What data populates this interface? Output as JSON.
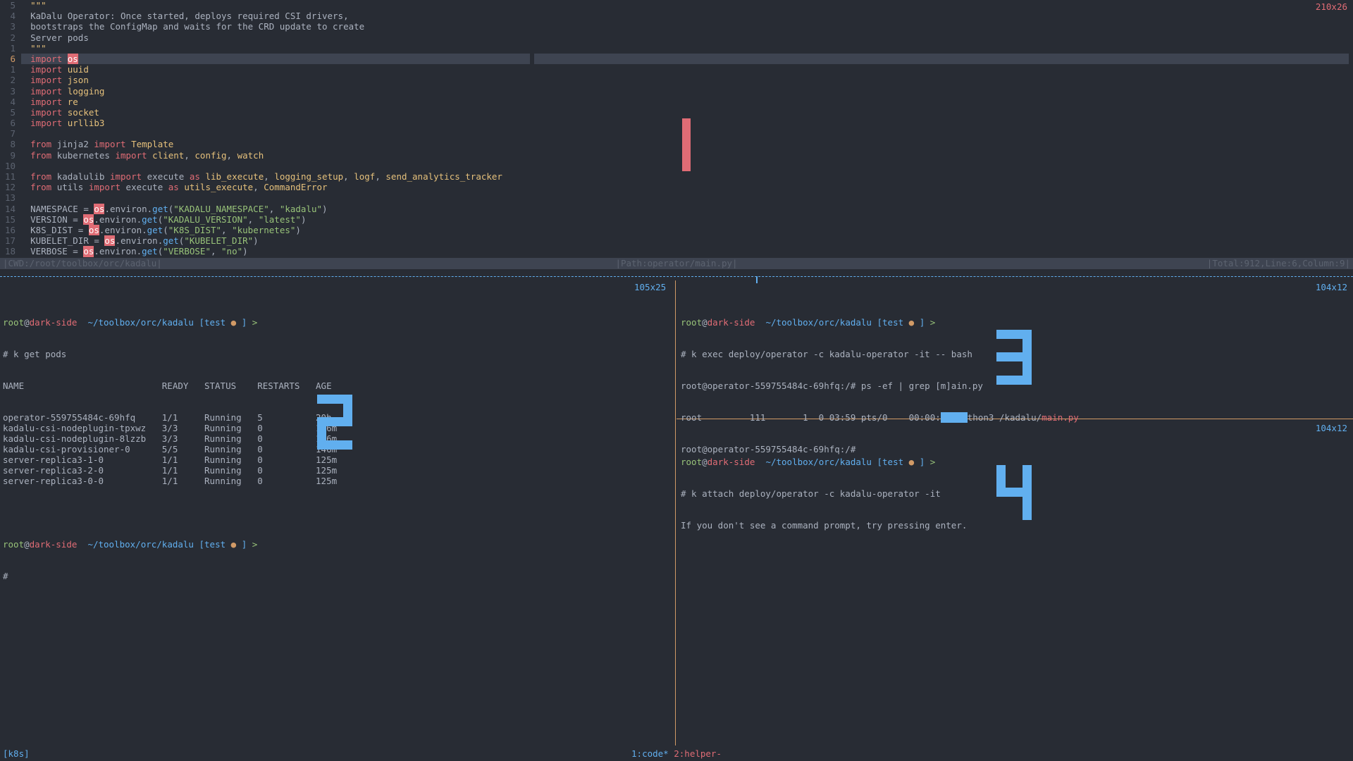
{
  "colors": {
    "bg": "#282c34",
    "fg": "#abb2bf",
    "gutter": "#5c6370",
    "red": "#e06c75",
    "yellow": "#e5c07b",
    "orange": "#d19a66",
    "green": "#98c379",
    "blue": "#61afef",
    "selection": "#3e4451"
  },
  "editor": {
    "top_size": "210x26",
    "current_line_rel": "6",
    "lines": [
      {
        "rel": "5",
        "tokens": [
          {
            "t": "\"\"\"",
            "c": "mod"
          }
        ]
      },
      {
        "rel": "4",
        "tokens": [
          {
            "t": "KaDalu Operator: Once started, deploys required CSI drivers,",
            "c": "op"
          }
        ]
      },
      {
        "rel": "3",
        "tokens": [
          {
            "t": "bootstraps the ConfigMap and waits for the CRD update to create",
            "c": "op"
          }
        ]
      },
      {
        "rel": "2",
        "tokens": [
          {
            "t": "Server pods",
            "c": "op"
          }
        ]
      },
      {
        "rel": "1",
        "tokens": [
          {
            "t": "\"\"\"",
            "c": "mod"
          }
        ]
      },
      {
        "rel": "6",
        "current": true,
        "tokens": [
          {
            "t": "import",
            "c": "kw"
          },
          {
            "t": " ",
            "c": "op"
          },
          {
            "t": "os",
            "c": "hl-os"
          }
        ]
      },
      {
        "rel": "1",
        "tokens": [
          {
            "t": "import",
            "c": "kw"
          },
          {
            "t": " ",
            "c": "op"
          },
          {
            "t": "uuid",
            "c": "mod"
          }
        ]
      },
      {
        "rel": "2",
        "tokens": [
          {
            "t": "import",
            "c": "kw"
          },
          {
            "t": " ",
            "c": "op"
          },
          {
            "t": "json",
            "c": "mod"
          }
        ]
      },
      {
        "rel": "3",
        "tokens": [
          {
            "t": "import",
            "c": "kw"
          },
          {
            "t": " ",
            "c": "op"
          },
          {
            "t": "logging",
            "c": "mod"
          }
        ]
      },
      {
        "rel": "4",
        "tokens": [
          {
            "t": "import",
            "c": "kw"
          },
          {
            "t": " ",
            "c": "op"
          },
          {
            "t": "re",
            "c": "mod"
          }
        ]
      },
      {
        "rel": "5",
        "tokens": [
          {
            "t": "import",
            "c": "kw"
          },
          {
            "t": " ",
            "c": "op"
          },
          {
            "t": "socket",
            "c": "mod"
          }
        ]
      },
      {
        "rel": "6",
        "tokens": [
          {
            "t": "import",
            "c": "kw"
          },
          {
            "t": " ",
            "c": "op"
          },
          {
            "t": "urllib3",
            "c": "mod"
          }
        ]
      },
      {
        "rel": "7",
        "tokens": []
      },
      {
        "rel": "8",
        "tokens": [
          {
            "t": "from",
            "c": "kw"
          },
          {
            "t": " jinja2 ",
            "c": "op"
          },
          {
            "t": "import",
            "c": "kw"
          },
          {
            "t": " ",
            "c": "op"
          },
          {
            "t": "Template",
            "c": "mod"
          }
        ]
      },
      {
        "rel": "9",
        "tokens": [
          {
            "t": "from",
            "c": "kw"
          },
          {
            "t": " kubernetes ",
            "c": "op"
          },
          {
            "t": "import",
            "c": "kw"
          },
          {
            "t": " ",
            "c": "op"
          },
          {
            "t": "client",
            "c": "mod"
          },
          {
            "t": ", ",
            "c": "op"
          },
          {
            "t": "config",
            "c": "mod"
          },
          {
            "t": ", ",
            "c": "op"
          },
          {
            "t": "watch",
            "c": "mod"
          }
        ]
      },
      {
        "rel": "10",
        "tokens": []
      },
      {
        "rel": "11",
        "tokens": [
          {
            "t": "from",
            "c": "kw"
          },
          {
            "t": " kadalulib ",
            "c": "op"
          },
          {
            "t": "import",
            "c": "kw"
          },
          {
            "t": " execute ",
            "c": "op"
          },
          {
            "t": "as",
            "c": "kw"
          },
          {
            "t": " ",
            "c": "op"
          },
          {
            "t": "lib_execute",
            "c": "mod"
          },
          {
            "t": ", ",
            "c": "op"
          },
          {
            "t": "logging_setup",
            "c": "mod"
          },
          {
            "t": ", ",
            "c": "op"
          },
          {
            "t": "logf",
            "c": "mod"
          },
          {
            "t": ", ",
            "c": "op"
          },
          {
            "t": "send_analytics_tracker",
            "c": "mod"
          }
        ]
      },
      {
        "rel": "12",
        "tokens": [
          {
            "t": "from",
            "c": "kw"
          },
          {
            "t": " utils ",
            "c": "op"
          },
          {
            "t": "import",
            "c": "kw"
          },
          {
            "t": " execute ",
            "c": "op"
          },
          {
            "t": "as",
            "c": "kw"
          },
          {
            "t": " ",
            "c": "op"
          },
          {
            "t": "utils_execute",
            "c": "mod"
          },
          {
            "t": ", ",
            "c": "op"
          },
          {
            "t": "CommandError",
            "c": "mod"
          }
        ]
      },
      {
        "rel": "13",
        "tokens": []
      },
      {
        "rel": "14",
        "tokens": [
          {
            "t": "NAMESPACE = ",
            "c": "op"
          },
          {
            "t": "os",
            "c": "hl-os"
          },
          {
            "t": ".environ.",
            "c": "op"
          },
          {
            "t": "get",
            "c": "fn"
          },
          {
            "t": "(",
            "c": "op"
          },
          {
            "t": "\"KADALU_NAMESPACE\"",
            "c": "str"
          },
          {
            "t": ", ",
            "c": "op"
          },
          {
            "t": "\"kadalu\"",
            "c": "str"
          },
          {
            "t": ")",
            "c": "op"
          }
        ]
      },
      {
        "rel": "15",
        "tokens": [
          {
            "t": "VERSION = ",
            "c": "op"
          },
          {
            "t": "os",
            "c": "hl-os"
          },
          {
            "t": ".environ.",
            "c": "op"
          },
          {
            "t": "get",
            "c": "fn"
          },
          {
            "t": "(",
            "c": "op"
          },
          {
            "t": "\"KADALU_VERSION\"",
            "c": "str"
          },
          {
            "t": ", ",
            "c": "op"
          },
          {
            "t": "\"latest\"",
            "c": "str"
          },
          {
            "t": ")",
            "c": "op"
          }
        ]
      },
      {
        "rel": "16",
        "tokens": [
          {
            "t": "K8S_DIST = ",
            "c": "op"
          },
          {
            "t": "os",
            "c": "hl-os"
          },
          {
            "t": ".environ.",
            "c": "op"
          },
          {
            "t": "get",
            "c": "fn"
          },
          {
            "t": "(",
            "c": "op"
          },
          {
            "t": "\"K8S_DIST\"",
            "c": "str"
          },
          {
            "t": ", ",
            "c": "op"
          },
          {
            "t": "\"kubernetes\"",
            "c": "str"
          },
          {
            "t": ")",
            "c": "op"
          }
        ]
      },
      {
        "rel": "17",
        "tokens": [
          {
            "t": "KUBELET_DIR = ",
            "c": "op"
          },
          {
            "t": "os",
            "c": "hl-os"
          },
          {
            "t": ".environ.",
            "c": "op"
          },
          {
            "t": "get",
            "c": "fn"
          },
          {
            "t": "(",
            "c": "op"
          },
          {
            "t": "\"KUBELET_DIR\"",
            "c": "str"
          },
          {
            "t": ")",
            "c": "op"
          }
        ]
      },
      {
        "rel": "18",
        "tokens": [
          {
            "t": "VERBOSE = ",
            "c": "op"
          },
          {
            "t": "os",
            "c": "hl-os"
          },
          {
            "t": ".environ.",
            "c": "op"
          },
          {
            "t": "get",
            "c": "fn"
          },
          {
            "t": "(",
            "c": "op"
          },
          {
            "t": "\"VERBOSE\"",
            "c": "str"
          },
          {
            "t": ", ",
            "c": "op"
          },
          {
            "t": "\"no\"",
            "c": "str"
          },
          {
            "t": ")",
            "c": "op"
          }
        ]
      }
    ],
    "status_left": "|CWD:/root/toolbox/orc/kadalu|",
    "status_mid": "|Path:operator/main.py|",
    "status_right": "|Total:912,Line:6,Column:9|"
  },
  "pane2": {
    "size": "105x25",
    "prompt": {
      "user": "root",
      "host": "dark-side",
      "path": "~/toolbox/orc/kadalu",
      "branch": "test",
      "dot": "●",
      "gt": ">"
    },
    "cmd": "# k get pods",
    "header": "NAME                          READY   STATUS    RESTARTS   AGE",
    "rows": [
      "operator-559755484c-69hfq     1/1     Running   5          20h",
      "kadalu-csi-nodeplugin-tpxwz   3/3     Running   0          146m",
      "kadalu-csi-nodeplugin-8lzzb   3/3     Running   0          146m",
      "kadalu-csi-provisioner-0      5/5     Running   0          146m",
      "server-replica3-1-0           1/1     Running   0          125m",
      "server-replica3-2-0           1/1     Running   0          125m",
      "server-replica3-0-0           1/1     Running   0          125m"
    ],
    "cursor": "#"
  },
  "pane3": {
    "size": "104x12",
    "prompt": {
      "user": "root",
      "host": "dark-side",
      "path": "~/toolbox/orc/kadalu",
      "branch": "test",
      "dot": "●",
      "gt": ">"
    },
    "cmd": "# k exec deploy/operator -c kadalu-operator -it -- bash",
    "line2": "root@operator-559755484c-69hfq:/# ps -ef | grep [m]ain.py",
    "line3_a": "root         111       1  0 03:59 pts/0    00:00:",
    "line3_b": "thon3 /kadalu/",
    "line3_c": "main.py",
    "line4": "root@operator-559755484c-69hfq:/#"
  },
  "pane4": {
    "size": "104x12",
    "prompt": {
      "user": "root",
      "host": "dark-side",
      "path": "~/toolbox/orc/kadalu",
      "branch": "test",
      "dot": "●",
      "gt": ">"
    },
    "cmd": "# k attach deploy/operator -c kadalu-operator -it",
    "line2": "If you don't see a command prompt, try pressing enter."
  },
  "tmux": {
    "session": "[k8s]",
    "win1": "1:code*",
    "win2": "2:helper-"
  },
  "pane_numbers": {
    "p1": "1",
    "p2": "2",
    "p3": "3",
    "p4": "4"
  }
}
